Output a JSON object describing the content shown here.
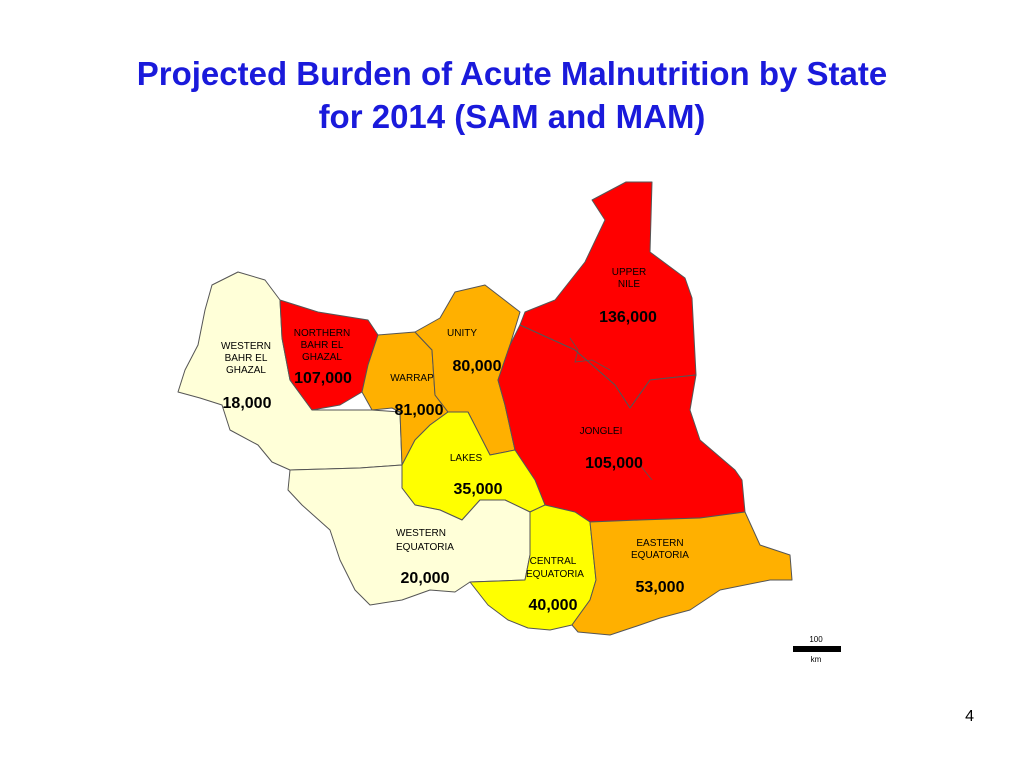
{
  "title": {
    "line1": "Projected Burden of Acute Malnutrition by State",
    "line2": "for 2014 (SAM and MAM)"
  },
  "colors": {
    "high": "#ff0000",
    "medium": "#ffb000",
    "low": "#ffff00",
    "lowest": "#ffffd8",
    "title": "#1a1adb"
  },
  "states": {
    "western_bahr_el_ghazal": {
      "name": [
        "WESTERN",
        "BAHR EL",
        "GHAZAL"
      ],
      "value": "18,000",
      "level": "lowest"
    },
    "northern_bahr_el_ghazal": {
      "name": [
        "NORTHERN",
        "BAHR EL",
        "GHAZAL"
      ],
      "value": "107,000",
      "level": "high"
    },
    "warrap": {
      "name": [
        "WARRAP"
      ],
      "value": "81,000",
      "level": "medium"
    },
    "unity": {
      "name": [
        "UNITY"
      ],
      "value": "80,000",
      "level": "medium"
    },
    "upper_nile": {
      "name": [
        "UPPER",
        "NILE"
      ],
      "value": "136,000",
      "level": "high"
    },
    "jonglei": {
      "name": [
        "JONGLEI"
      ],
      "value": "105,000",
      "level": "high"
    },
    "lakes": {
      "name": [
        "LAKES"
      ],
      "value": "35,000",
      "level": "low"
    },
    "western_equatoria": {
      "name": [
        "WESTERN",
        "EQUATORIA"
      ],
      "value": "20,000",
      "level": "lowest"
    },
    "central_equatoria": {
      "name": [
        "CENTRAL",
        "EQUATORIA"
      ],
      "value": "40,000",
      "level": "low"
    },
    "eastern_equatoria": {
      "name": [
        "EASTERN",
        "EQUATORIA"
      ],
      "value": "53,000",
      "level": "medium"
    }
  },
  "scale_bar": {
    "value": "100",
    "unit": "km"
  },
  "page_number": "4"
}
